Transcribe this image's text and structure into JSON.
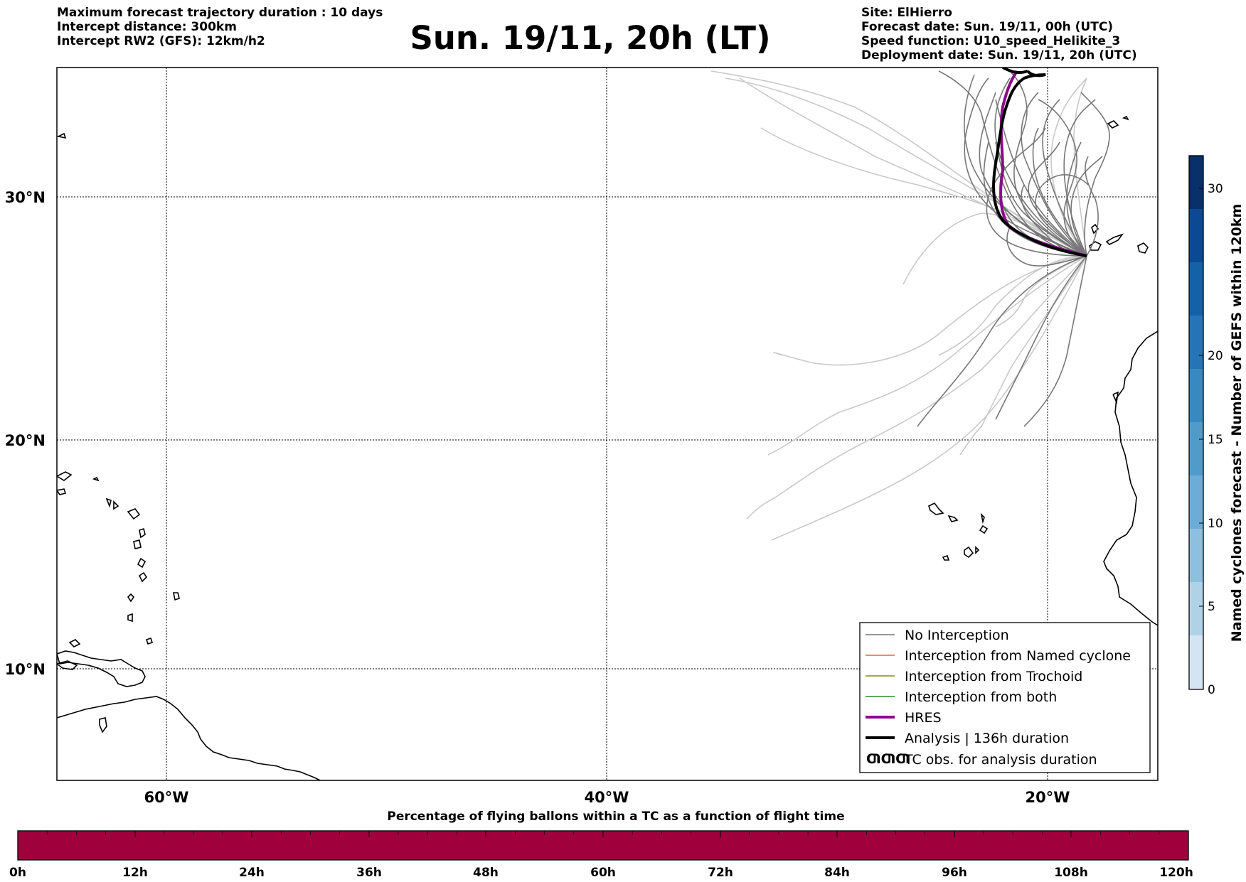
{
  "header": {
    "left": [
      "Maximum forecast trajectory duration : 10 days",
      "Intercept distance: 300km",
      "Intercept RW2 (GFS):  12km/h2"
    ],
    "title": "Sun. 19/11, 20h (LT)",
    "right": [
      "Site: ElHierro",
      "Forecast date: Sun. 19/11, 00h (UTC)",
      "Speed function: U10_speed_Helikite_3",
      "Deployment date: Sun. 19/11, 20h (UTC)"
    ]
  },
  "map": {
    "lat_labels": [
      "30°N",
      "20°N",
      "10°N"
    ],
    "lon_labels": [
      "60°W",
      "40°W",
      "20°W"
    ]
  },
  "legend": {
    "items": [
      {
        "label": "No Interception",
        "color": "#737373",
        "style": "thin"
      },
      {
        "label": "Interception from Named cyclone",
        "color": "#e8642a",
        "style": "thin"
      },
      {
        "label": "Interception from Trochoid",
        "color": "#8a8a1e",
        "style": "thin"
      },
      {
        "label": "Interception from both",
        "color": "#2a8a2a",
        "style": "thin"
      },
      {
        "label": "HRES",
        "color": "#8b0a8b",
        "style": "thick"
      },
      {
        "label": "Analysis | 136h duration",
        "color": "#000000",
        "style": "thick"
      },
      {
        "label": "TC obs. for analysis duration",
        "color": "#000000",
        "style": "symbol",
        "symbol_text": "ƢƢƢ"
      }
    ]
  },
  "colorbar": {
    "title": "Named cyclones forecast - Number of GEFS within 120km",
    "ticks": [
      "0",
      "5",
      "10",
      "15",
      "20",
      "30"
    ]
  },
  "timeline": {
    "title": "Percentage of flying ballons within a TC as a function of flight time",
    "color": "#a0003c",
    "ticks": [
      "0h",
      "12h",
      "24h",
      "36h",
      "48h",
      "60h",
      "72h",
      "84h",
      "96h",
      "108h",
      "120h"
    ]
  },
  "colors": {
    "no_interception": "#737373",
    "hres": "#8b0a8b",
    "analysis": "#000000"
  }
}
